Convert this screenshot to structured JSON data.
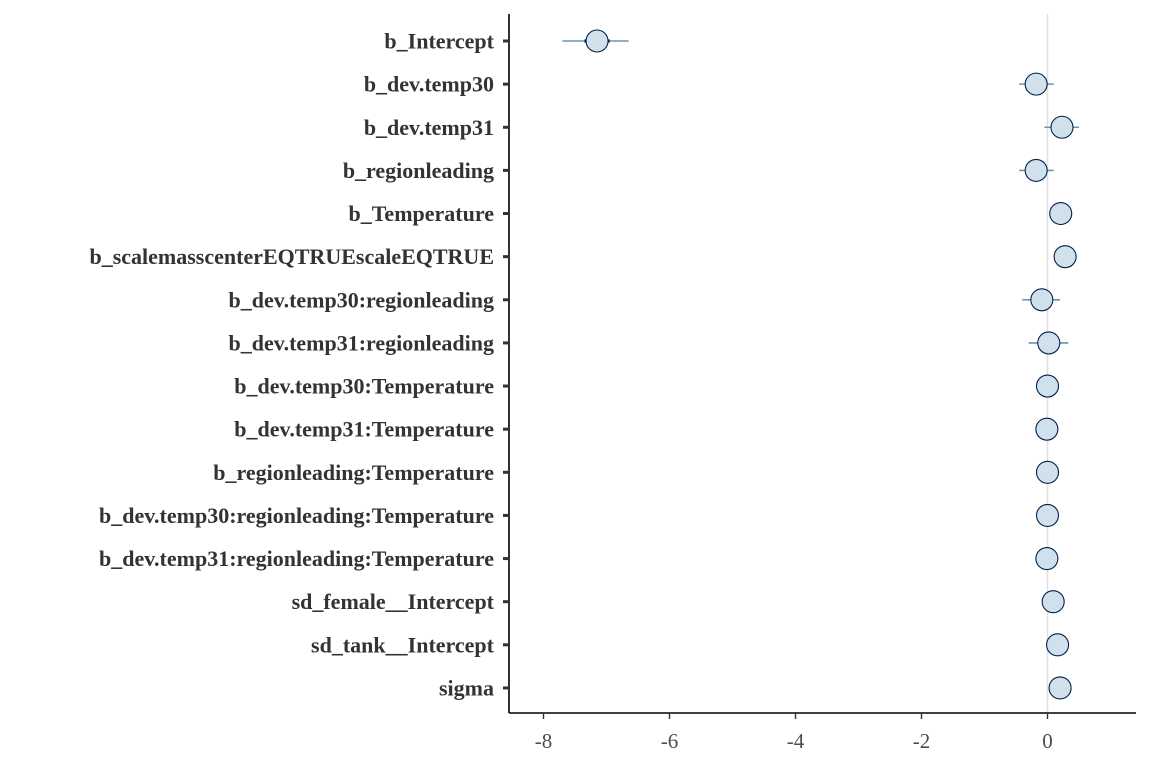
{
  "chart_data": {
    "type": "scatter",
    "subtype": "interval-plot",
    "title": "",
    "xlabel": "",
    "ylabel": "",
    "xlim": [
      -8.5,
      1.4
    ],
    "x_ticks": [
      -8,
      -6,
      -4,
      -2,
      0
    ],
    "reference_line": 0,
    "grid": false,
    "colors": {
      "point_fill": "#d1e1ec",
      "point_stroke": "#011f4b",
      "interval": "#6497b1",
      "inner_interval": "#011f4b",
      "reference_line": "#e0e0e0",
      "axis": "#000000"
    },
    "parameters": [
      {
        "label": "b_Intercept",
        "estimate": -7.15,
        "inner": [
          -7.35,
          -6.95
        ],
        "outer": [
          -7.7,
          -6.65
        ]
      },
      {
        "label": "b_dev.temp30",
        "estimate": -0.18,
        "inner": [
          -0.3,
          -0.06
        ],
        "outer": [
          -0.45,
          0.1
        ]
      },
      {
        "label": "b_dev.temp31",
        "estimate": 0.23,
        "inner": [
          0.1,
          0.36
        ],
        "outer": [
          -0.05,
          0.5
        ]
      },
      {
        "label": "b_regionleading",
        "estimate": -0.18,
        "inner": [
          -0.3,
          -0.06
        ],
        "outer": [
          -0.45,
          0.1
        ]
      },
      {
        "label": "b_Temperature",
        "estimate": 0.21,
        "inner": [
          0.19,
          0.23
        ],
        "outer": [
          0.17,
          0.25
        ]
      },
      {
        "label": "b_scalemasscenterEQTRUEscaleEQTRUE",
        "estimate": 0.28,
        "inner": [
          0.26,
          0.3
        ],
        "outer": [
          0.24,
          0.32
        ]
      },
      {
        "label": "b_dev.temp30:regionleading",
        "estimate": -0.09,
        "inner": [
          -0.22,
          0.04
        ],
        "outer": [
          -0.4,
          0.2
        ]
      },
      {
        "label": "b_dev.temp31:regionleading",
        "estimate": 0.02,
        "inner": [
          -0.12,
          0.16
        ],
        "outer": [
          -0.3,
          0.33
        ]
      },
      {
        "label": "b_dev.temp30:Temperature",
        "estimate": 0.0,
        "inner": [
          -0.02,
          0.02
        ],
        "outer": [
          -0.04,
          0.04
        ]
      },
      {
        "label": "b_dev.temp31:Temperature",
        "estimate": -0.01,
        "inner": [
          -0.03,
          0.01
        ],
        "outer": [
          -0.05,
          0.03
        ]
      },
      {
        "label": "b_regionleading:Temperature",
        "estimate": 0.0,
        "inner": [
          -0.02,
          0.02
        ],
        "outer": [
          -0.04,
          0.04
        ]
      },
      {
        "label": "b_dev.temp30:regionleading:Temperature",
        "estimate": 0.0,
        "inner": [
          -0.02,
          0.02
        ],
        "outer": [
          -0.04,
          0.04
        ]
      },
      {
        "label": "b_dev.temp31:regionleading:Temperature",
        "estimate": -0.01,
        "inner": [
          -0.03,
          0.01
        ],
        "outer": [
          -0.05,
          0.03
        ]
      },
      {
        "label": "sd_female__Intercept",
        "estimate": 0.09,
        "inner": [
          0.06,
          0.12
        ],
        "outer": [
          0.03,
          0.16
        ]
      },
      {
        "label": "sd_tank__Intercept",
        "estimate": 0.16,
        "inner": [
          0.13,
          0.19
        ],
        "outer": [
          0.1,
          0.23
        ]
      },
      {
        "label": "sigma",
        "estimate": 0.2,
        "inner": [
          0.18,
          0.22
        ],
        "outer": [
          0.16,
          0.24
        ]
      }
    ]
  }
}
